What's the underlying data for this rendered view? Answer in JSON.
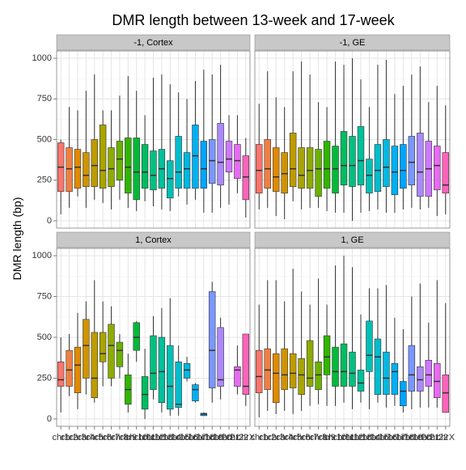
{
  "chart_data": {
    "type": "boxplot",
    "title": "DMR length between 13-week and 17-week",
    "ylabel": "DMR length (bp)",
    "categories": [
      "chr1",
      "chr2",
      "chr3",
      "chr4",
      "chr5",
      "chr6",
      "chr7",
      "chr8",
      "chr9",
      "chr10",
      "chr11",
      "chr12",
      "chr13",
      "chr14",
      "chr15",
      "chr16",
      "chr17",
      "chr18",
      "chr19",
      "chr20",
      "chr21",
      "chr22",
      "chrX"
    ],
    "colors": [
      "#F8766D",
      "#EE8043",
      "#E18A00",
      "#D09400",
      "#BE9C00",
      "#A8A400",
      "#8EAB00",
      "#6BB100",
      "#2FB600",
      "#00BA38",
      "#00BD61",
      "#00C081",
      "#00C19C",
      "#00C0B5",
      "#00BDCC",
      "#00B8E1",
      "#00B0F3",
      "#00A5FF",
      "#7997FF",
      "#AC88FF",
      "#CF78FF",
      "#E76BF3",
      "#FF62BC"
    ],
    "ylim": [
      -45,
      1045
    ],
    "yticks": [
      0,
      250,
      500,
      750,
      1000
    ],
    "grid": true,
    "panels": [
      {
        "name": "-1, Cortex",
        "low": [
          40,
          80,
          150,
          80,
          130,
          110,
          70,
          130,
          80,
          60,
          120,
          90,
          70,
          60,
          150,
          100,
          130,
          50,
          50,
          80,
          100,
          170,
          20
        ],
        "q1": [
          180,
          180,
          200,
          210,
          210,
          200,
          210,
          250,
          170,
          130,
          200,
          190,
          200,
          140,
          200,
          200,
          200,
          200,
          230,
          220,
          300,
          260,
          130
        ],
        "median": [
          330,
          320,
          330,
          280,
          340,
          310,
          320,
          380,
          330,
          300,
          300,
          280,
          320,
          260,
          300,
          320,
          400,
          320,
          370,
          360,
          380,
          370,
          270
        ],
        "q3": [
          480,
          450,
          440,
          420,
          500,
          590,
          450,
          490,
          510,
          510,
          470,
          430,
          440,
          370,
          520,
          420,
          590,
          490,
          500,
          600,
          490,
          470,
          400
        ],
        "high": [
          500,
          700,
          680,
          800,
          900,
          680,
          680,
          770,
          890,
          800,
          650,
          880,
          900,
          840,
          790,
          750,
          860,
          930,
          900,
          960,
          650,
          650,
          510
        ]
      },
      {
        "name": "-1, GE",
        "low": [
          70,
          80,
          30,
          10,
          120,
          70,
          80,
          80,
          60,
          50,
          50,
          0,
          50,
          60,
          70,
          50,
          50,
          70,
          80,
          70,
          80,
          30,
          40
        ],
        "q1": [
          170,
          200,
          180,
          170,
          210,
          200,
          200,
          150,
          200,
          170,
          220,
          210,
          220,
          170,
          180,
          210,
          160,
          200,
          220,
          150,
          150,
          190,
          170
        ],
        "median": [
          310,
          320,
          270,
          290,
          320,
          280,
          310,
          320,
          320,
          320,
          340,
          340,
          370,
          280,
          310,
          330,
          300,
          310,
          360,
          300,
          320,
          340,
          220
        ],
        "q3": [
          470,
          500,
          450,
          420,
          540,
          450,
          450,
          440,
          490,
          460,
          550,
          520,
          580,
          380,
          470,
          500,
          460,
          470,
          520,
          540,
          490,
          460,
          420
        ],
        "high": [
          720,
          920,
          760,
          700,
          920,
          980,
          900,
          730,
          700,
          980,
          960,
          1000,
          870,
          700,
          960,
          990,
          780,
          830,
          900,
          950,
          730,
          830,
          710
        ]
      },
      {
        "name": "1, Cortex",
        "low": [
          40,
          140,
          60,
          150,
          100,
          200,
          200,
          250,
          40,
          350,
          0,
          120,
          40,
          20,
          20,
          230,
          100,
          20,
          100,
          120,
          null,
          150,
          80
        ],
        "q1": [
          200,
          200,
          160,
          250,
          130,
          350,
          250,
          320,
          90,
          420,
          60,
          180,
          100,
          60,
          70,
          250,
          110,
          20,
          190,
          200,
          null,
          200,
          150
        ],
        "median": [
          240,
          300,
          330,
          450,
          250,
          400,
          450,
          420,
          180,
          500,
          150,
          280,
          290,
          200,
          90,
          300,
          180,
          30,
          420,
          240,
          null,
          300,
          200
        ],
        "q3": [
          350,
          420,
          440,
          610,
          530,
          530,
          580,
          470,
          270,
          590,
          260,
          510,
          500,
          450,
          350,
          340,
          210,
          35,
          780,
          560,
          null,
          320,
          520
        ],
        "high": [
          500,
          520,
          650,
          720,
          850,
          720,
          690,
          520,
          400,
          600,
          430,
          630,
          680,
          740,
          450,
          380,
          220,
          40,
          840,
          620,
          null,
          450,
          520
        ]
      },
      {
        "name": "1, GE",
        "low": [
          10,
          50,
          30,
          50,
          30,
          50,
          80,
          90,
          80,
          80,
          100,
          60,
          100,
          60,
          100,
          70,
          80,
          40,
          60,
          70,
          70,
          70,
          40
        ],
        "q1": [
          160,
          180,
          100,
          180,
          190,
          150,
          200,
          180,
          270,
          200,
          200,
          200,
          170,
          290,
          150,
          150,
          150,
          80,
          170,
          170,
          200,
          130,
          40
        ],
        "median": [
          260,
          300,
          280,
          270,
          280,
          270,
          250,
          270,
          380,
          290,
          290,
          280,
          220,
          390,
          380,
          250,
          290,
          170,
          270,
          240,
          270,
          230,
          160
        ],
        "q3": [
          420,
          430,
          400,
          430,
          400,
          370,
          480,
          350,
          510,
          440,
          460,
          410,
          300,
          600,
          490,
          410,
          340,
          230,
          450,
          320,
          360,
          340,
          270
        ],
        "high": [
          700,
          850,
          850,
          720,
          920,
          780,
          700,
          860,
          700,
          940,
          1000,
          930,
          640,
          800,
          800,
          820,
          620,
          550,
          750,
          830,
          590,
          850,
          710
        ]
      }
    ]
  }
}
